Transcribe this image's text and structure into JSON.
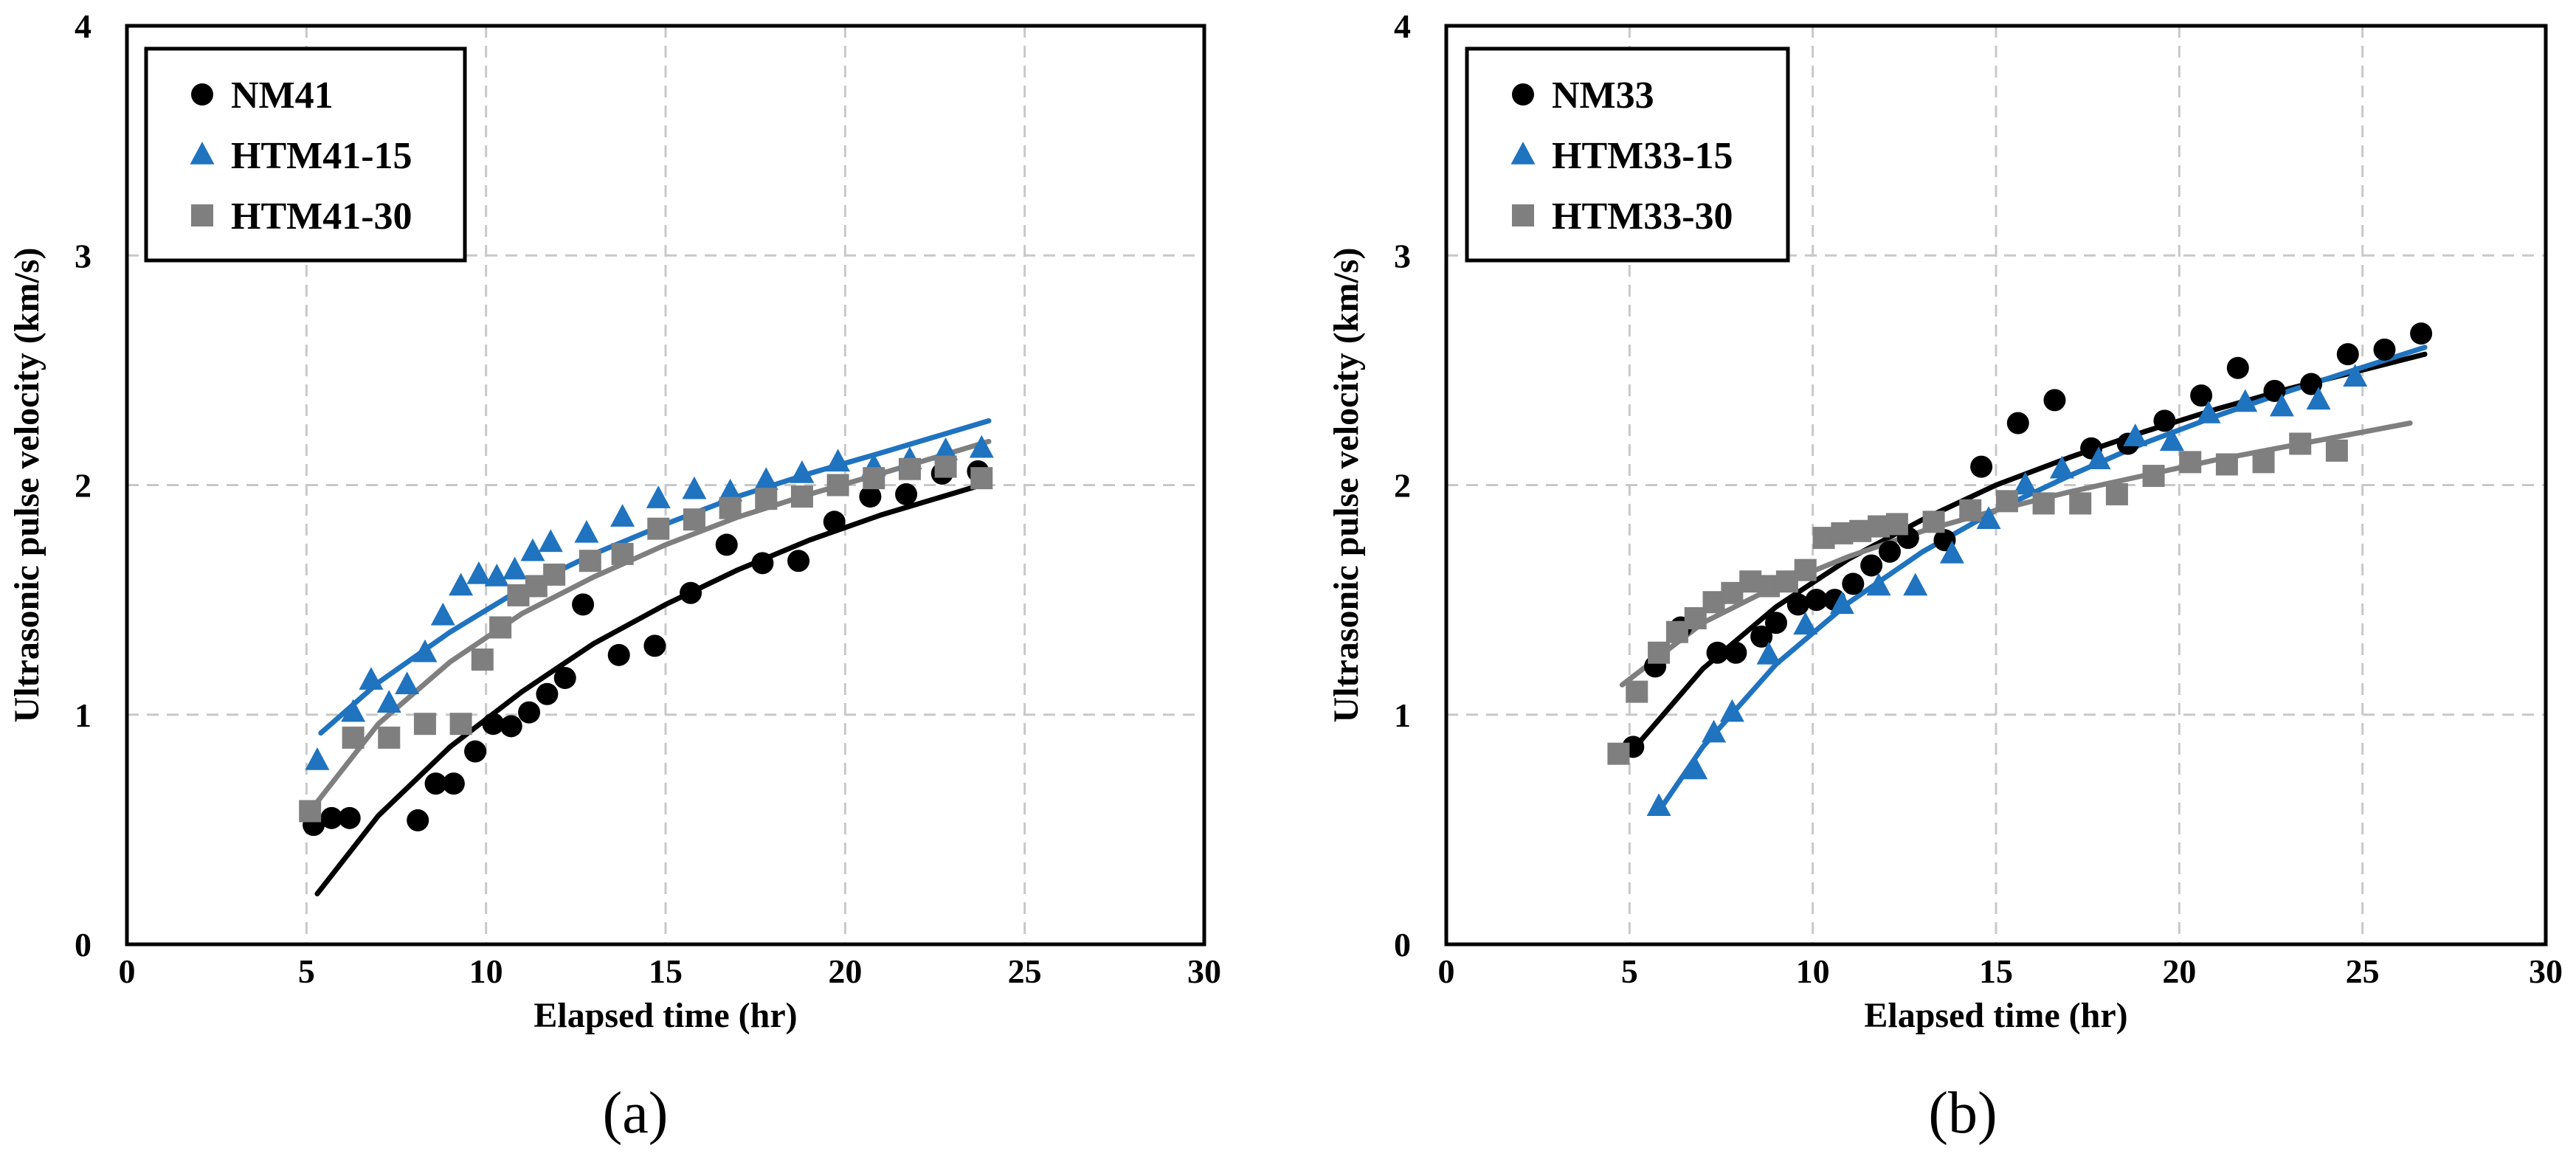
{
  "chart_data": [
    {
      "type": "scatter",
      "panel_label": "(a)",
      "xlabel": "Elapsed time (hr)",
      "ylabel": "Ultrasonic pulse velocity (km/s)",
      "xlim": [
        0,
        30
      ],
      "ylim": [
        0,
        4
      ],
      "xticks": [
        "0",
        "5",
        "10",
        "15",
        "20",
        "25",
        "30"
      ],
      "yticks": [
        "0",
        "1",
        "2",
        "3",
        "4"
      ],
      "grid": true,
      "legend_position": "top-left",
      "series": [
        {
          "name": "NM41",
          "marker": "circle",
          "color": "#000000",
          "x": [
            5.2,
            5.7,
            6.2,
            8.1,
            8.6,
            9.1,
            9.7,
            10.2,
            10.7,
            11.2,
            11.7,
            12.2,
            12.7,
            13.7,
            14.7,
            15.7,
            16.7,
            17.7,
            18.7,
            19.7,
            20.7,
            21.7,
            22.7,
            23.7
          ],
          "y": [
            0.52,
            0.55,
            0.55,
            0.54,
            0.7,
            0.7,
            0.84,
            0.96,
            0.95,
            1.01,
            1.09,
            1.16,
            1.48,
            1.26,
            1.3,
            1.53,
            1.74,
            1.66,
            1.67,
            1.84,
            1.95,
            1.96,
            2.05,
            2.06
          ],
          "fit_curve": {
            "x": [
              5.3,
              7,
              9,
              11,
              13,
              15,
              17,
              19,
              21,
              24
            ],
            "y": [
              0.22,
              0.56,
              0.86,
              1.1,
              1.31,
              1.48,
              1.63,
              1.76,
              1.87,
              2.01
            ]
          }
        },
        {
          "name": "HTM41-15",
          "marker": "triangle",
          "color": "#1f73bf",
          "x": [
            5.3,
            6.3,
            6.8,
            7.3,
            7.8,
            8.3,
            8.8,
            9.3,
            9.8,
            10.3,
            10.8,
            11.3,
            11.8,
            12.8,
            13.8,
            14.8,
            15.8,
            16.8,
            17.8,
            18.8,
            19.8,
            20.8,
            21.8,
            22.8,
            23.8
          ],
          "y": [
            0.8,
            1.01,
            1.15,
            1.05,
            1.13,
            1.27,
            1.43,
            1.56,
            1.61,
            1.6,
            1.63,
            1.71,
            1.75,
            1.79,
            1.86,
            1.94,
            1.98,
            1.97,
            2.02,
            2.05,
            2.1,
            2.08,
            2.11,
            2.15,
            2.16
          ],
          "fit_curve": {
            "x": [
              5.4,
              7,
              9,
              11,
              13,
              15,
              17,
              19,
              21,
              24
            ],
            "y": [
              0.92,
              1.14,
              1.36,
              1.55,
              1.7,
              1.83,
              1.95,
              2.05,
              2.14,
              2.28
            ]
          }
        },
        {
          "name": "HTM41-30",
          "marker": "square",
          "color": "#7f7f7f",
          "x": [
            5.1,
            6.3,
            7.3,
            8.3,
            9.3,
            9.9,
            10.4,
            10.9,
            11.4,
            11.9,
            12.9,
            13.8,
            14.8,
            15.8,
            16.8,
            17.8,
            18.8,
            19.8,
            20.8,
            21.8,
            22.8,
            23.8
          ],
          "y": [
            0.58,
            0.9,
            0.9,
            0.96,
            0.96,
            1.24,
            1.38,
            1.52,
            1.56,
            1.61,
            1.67,
            1.7,
            1.81,
            1.85,
            1.9,
            1.94,
            1.95,
            2.0,
            2.03,
            2.07,
            2.08,
            2.03
          ],
          "fit_curve": {
            "x": [
              5.3,
              7,
              9,
              11,
              13,
              15,
              17,
              19,
              21,
              24
            ],
            "y": [
              0.62,
              0.96,
              1.23,
              1.44,
              1.6,
              1.74,
              1.86,
              1.96,
              2.05,
              2.19
            ]
          }
        }
      ]
    },
    {
      "type": "scatter",
      "panel_label": "(b)",
      "xlabel": "Elapsed time (hr)",
      "ylabel": "Ultrasonic pulse velocity (km/s)",
      "xlim": [
        0,
        30
      ],
      "ylim": [
        0,
        4
      ],
      "xticks": [
        "0",
        "5",
        "10",
        "15",
        "20",
        "25",
        "30"
      ],
      "yticks": [
        "0",
        "1",
        "2",
        "3",
        "4"
      ],
      "grid": true,
      "legend_position": "top-left",
      "series": [
        {
          "name": "NM33",
          "marker": "circle",
          "color": "#000000",
          "x": [
            5.1,
            5.7,
            6.4,
            7.4,
            7.9,
            8.6,
            9.0,
            9.6,
            10.1,
            10.6,
            11.1,
            11.6,
            12.1,
            12.6,
            13.6,
            14.6,
            15.6,
            16.6,
            17.6,
            18.6,
            19.6,
            20.6,
            21.6,
            22.6,
            23.6,
            24.6,
            25.6,
            26.6
          ],
          "y": [
            0.86,
            1.21,
            1.38,
            1.27,
            1.27,
            1.34,
            1.4,
            1.48,
            1.5,
            1.5,
            1.57,
            1.65,
            1.71,
            1.77,
            1.76,
            2.08,
            2.27,
            2.37,
            2.16,
            2.18,
            2.28,
            2.39,
            2.51,
            2.41,
            2.44,
            2.57,
            2.59,
            2.66
          ],
          "fit_curve": {
            "x": [
              5,
              7,
              9,
              11,
              13,
              15,
              17,
              19,
              21,
              23,
              26.7
            ],
            "y": [
              0.83,
              1.2,
              1.47,
              1.68,
              1.85,
              2.0,
              2.12,
              2.23,
              2.33,
              2.42,
              2.57
            ]
          }
        },
        {
          "name": "HTM33-15",
          "marker": "triangle",
          "color": "#1f73bf",
          "x": [
            5.8,
            6.8,
            7.3,
            7.8,
            8.8,
            9.8,
            10.8,
            11.8,
            12.8,
            13.8,
            14.8,
            15.8,
            16.8,
            17.8,
            18.8,
            19.8,
            20.8,
            21.8,
            22.8,
            23.8,
            24.8
          ],
          "y": [
            0.6,
            0.76,
            0.92,
            1.01,
            1.26,
            1.39,
            1.48,
            1.56,
            1.56,
            1.7,
            1.85,
            2.0,
            2.07,
            2.11,
            2.21,
            2.19,
            2.31,
            2.36,
            2.34,
            2.37,
            2.47
          ],
          "fit_curve": {
            "x": [
              5.8,
              7,
              9,
              11,
              13,
              15,
              17,
              19,
              21,
              23,
              26.7
            ],
            "y": [
              0.58,
              0.86,
              1.22,
              1.49,
              1.71,
              1.89,
              2.04,
              2.18,
              2.3,
              2.41,
              2.6
            ]
          }
        },
        {
          "name": "HTM33-30",
          "marker": "square",
          "color": "#7f7f7f",
          "x": [
            4.7,
            5.2,
            5.8,
            6.3,
            6.8,
            7.3,
            7.8,
            8.3,
            8.8,
            9.3,
            9.8,
            10.3,
            10.8,
            11.3,
            11.8,
            12.3,
            13.3,
            14.3,
            15.3,
            16.3,
            17.3,
            18.3,
            19.3,
            20.3,
            21.3,
            22.3,
            23.3,
            24.3
          ],
          "y": [
            0.83,
            1.1,
            1.27,
            1.36,
            1.42,
            1.49,
            1.53,
            1.58,
            1.56,
            1.58,
            1.63,
            1.77,
            1.79,
            1.8,
            1.82,
            1.83,
            1.84,
            1.89,
            1.93,
            1.92,
            1.92,
            1.96,
            2.04,
            2.1,
            2.09,
            2.1,
            2.18,
            2.15
          ],
          "fit_curve": {
            "x": [
              4.8,
              7,
              9,
              11,
              13,
              15,
              17,
              19,
              21,
              23,
              26.3
            ],
            "y": [
              1.13,
              1.4,
              1.56,
              1.69,
              1.8,
              1.89,
              1.97,
              2.04,
              2.11,
              2.17,
              2.27
            ]
          }
        }
      ]
    }
  ]
}
